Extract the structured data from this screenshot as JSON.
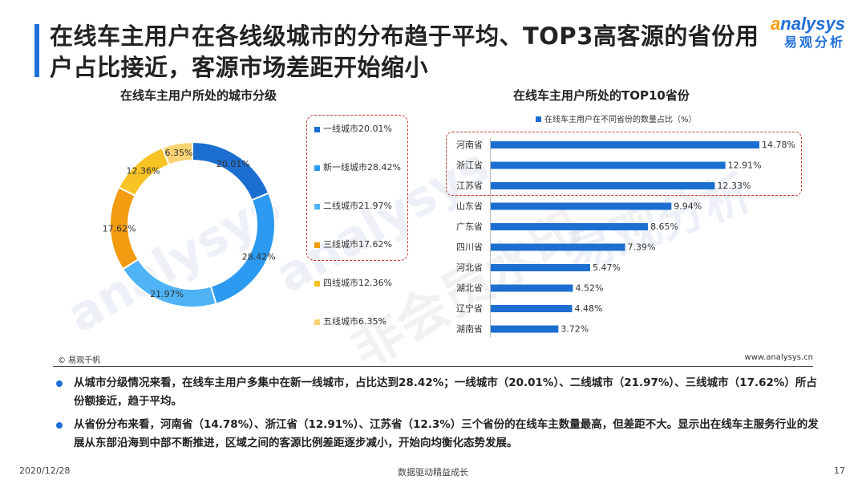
{
  "title": "在线车主用户在各线级城市的分布趋于平均、TOP3高客源的省份用户占比接近，客源市场差距开始缩小",
  "logo": {
    "en": "nalysys",
    "en_initial": "a",
    "cn": "易观分析"
  },
  "watermark": {
    "brand": "analysys",
    "brand_cn": "易观分析",
    "stamp": "非会员水印"
  },
  "chart_data": [
    {
      "type": "pie",
      "title": "在线车主用户所处的城市分级",
      "categories": [
        "一线城市",
        "新一线城市",
        "二线城市",
        "三线城市",
        "四线城市",
        "五线城市"
      ],
      "values": [
        20.01,
        28.42,
        21.97,
        17.62,
        12.36,
        6.35
      ],
      "value_labels": [
        "20.01%",
        "28.42%",
        "21.97%",
        "17.62%",
        "12.36%",
        "6.35%"
      ],
      "legend": [
        "一线城市20.01%",
        "新一线城市28.42%",
        "二线城市21.97%",
        "三线城市17.62%",
        "四线城市12.36%",
        "五线城市6.35%"
      ],
      "colors": [
        "#1c6fd1",
        "#2b9af0",
        "#4fb3f6",
        "#f39c12",
        "#f7c325",
        "#fbd374"
      ],
      "legend_position": "right"
    },
    {
      "type": "bar",
      "orientation": "horizontal",
      "title": "在线车主用户所处的TOP10省份",
      "legend": [
        "在线车主用户在不同省份的数量占比（%）"
      ],
      "categories": [
        "河南省",
        "浙江省",
        "江苏省",
        "山东省",
        "广东省",
        "四川省",
        "河北省",
        "湖北省",
        "辽宁省",
        "湖南省"
      ],
      "values": [
        14.78,
        12.91,
        12.33,
        9.94,
        8.65,
        7.39,
        5.47,
        4.52,
        4.48,
        3.72
      ],
      "value_labels": [
        "14.78%",
        "12.91%",
        "12.33%",
        "9.94%",
        "8.65%",
        "7.39%",
        "5.47%",
        "4.52%",
        "4.48%",
        "3.72%"
      ],
      "color": "#1c6fd1",
      "xlim": [
        0,
        15
      ]
    }
  ],
  "source_left": "© 易观千帆",
  "source_right": "www.analysys.cn",
  "bullets": [
    "从城市分级情况来看，在线车主用户多集中在新一线城市，占比达到28.42%；一线城市（20.01%）、二线城市（21.97%）、三线城市（17.62%）所占份额接近，趋于平均。",
    "从省份分布来看，河南省（14.78%）、浙江省（12.91%）、江苏省（12.3%）三个省份的在线车主数量最高，但差距不大。显示出在线车主服务行业的发展从东部沿海到中部不断推进，区域之间的客源比例差距逐步减小，开始向均衡化态势发展。"
  ],
  "footer": {
    "date": "2020/12/28",
    "slogan": "数据驱动精益成长",
    "page": "17"
  }
}
